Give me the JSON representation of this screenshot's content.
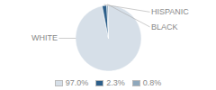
{
  "chart_data": {
    "type": "pie",
    "categories": [
      "WHITE",
      "HISPANIC",
      "BLACK"
    ],
    "values": [
      97.0,
      2.3,
      0.8
    ],
    "value_labels": [
      "97.0%",
      "2.3%",
      "0.8%"
    ],
    "colors": [
      "#d6dfe8",
      "#2d5f8a",
      "#8fa8bc"
    ],
    "legend": "bottom"
  }
}
